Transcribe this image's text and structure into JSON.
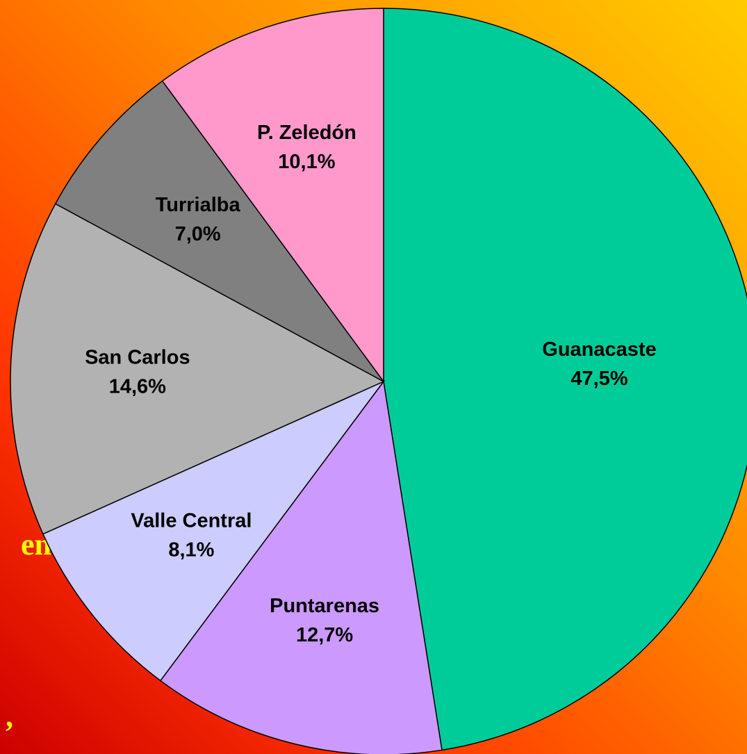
{
  "chart_data": {
    "type": "pie",
    "categories": [
      "Guanacaste",
      "Puntarenas",
      "Valle Central",
      "San Carlos",
      "Turrialba",
      "P. Zeledón"
    ],
    "values": [
      47.5,
      12.7,
      8.1,
      14.6,
      7.0,
      10.1
    ],
    "value_labels": [
      "47,5%",
      "12,7%",
      "8,1%",
      "14,6%",
      "7,0%",
      "10,1%"
    ],
    "colors": [
      "#00cc99",
      "#cc99ff",
      "#ccccff",
      "#b2b2b2",
      "#808080",
      "#ff99cc"
    ],
    "annotations": [
      "n",
      "en",
      ","
    ]
  }
}
